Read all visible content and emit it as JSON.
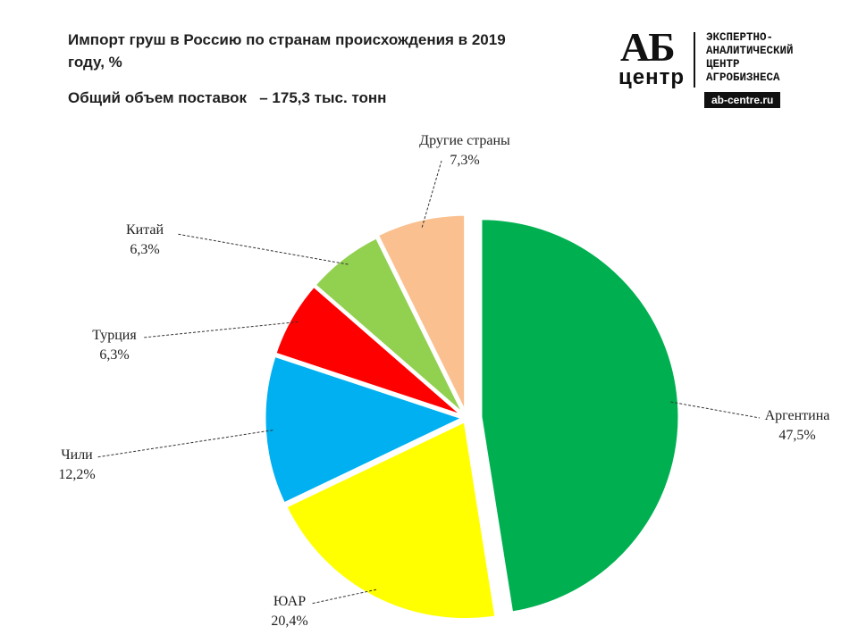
{
  "header": {
    "title": "Импорт груш в Россию по странам происхождения в 2019 году, %",
    "subtitle": "Общий объем поставок   – 175,3 тыс. тонн"
  },
  "logo": {
    "mark_top": "АБ",
    "mark_bottom": "центр",
    "lines": [
      "ЭКСПЕРТНО-",
      "АНАЛИТИЧЕСКИЙ",
      "ЦЕНТР",
      "АГРОБИЗНЕСА"
    ],
    "url": "ab-centre.ru"
  },
  "chart_data": {
    "type": "pie",
    "title": "Импорт груш в Россию по странам происхождения в 2019 году, %",
    "slices": [
      {
        "label": "Аргентина",
        "value": 47.5,
        "value_text": "47,5%",
        "color": "#00b050"
      },
      {
        "label": "ЮАР",
        "value": 20.4,
        "value_text": "20,4%",
        "color": "#ffff00"
      },
      {
        "label": "Чили",
        "value": 12.2,
        "value_text": "12,2%",
        "color": "#00b0f0"
      },
      {
        "label": "Турция",
        "value": 6.3,
        "value_text": "6,3%",
        "color": "#ff0000"
      },
      {
        "label": "Китай",
        "value": 6.3,
        "value_text": "6,3%",
        "color": "#92d050"
      },
      {
        "label": "Другие страны",
        "value": 7.3,
        "value_text": "7,3%",
        "color": "#fac090"
      }
    ]
  }
}
